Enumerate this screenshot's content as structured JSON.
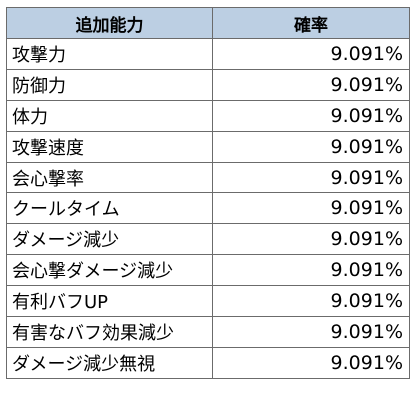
{
  "table": {
    "headers": {
      "ability": "追加能力",
      "rate": "確率"
    },
    "rows": [
      {
        "ability": "攻撃力",
        "rate": "9.091%"
      },
      {
        "ability": "防御力",
        "rate": "9.091%"
      },
      {
        "ability": "体力",
        "rate": "9.091%"
      },
      {
        "ability": "攻撃速度",
        "rate": "9.091%"
      },
      {
        "ability": "会心撃率",
        "rate": "9.091%"
      },
      {
        "ability": "クールタイム",
        "rate": "9.091%"
      },
      {
        "ability": "ダメージ減少",
        "rate": "9.091%"
      },
      {
        "ability": "会心撃ダメージ減少",
        "rate": "9.091%"
      },
      {
        "ability": "有利バフUP",
        "rate": "9.091%"
      },
      {
        "ability": "有害なバフ効果減少",
        "rate": "9.091%"
      },
      {
        "ability": "ダメージ減少無視",
        "rate": "9.091%"
      }
    ]
  },
  "colors": {
    "header_background": "#bccfe3",
    "border": "#6b6b6b",
    "text": "#000000"
  }
}
